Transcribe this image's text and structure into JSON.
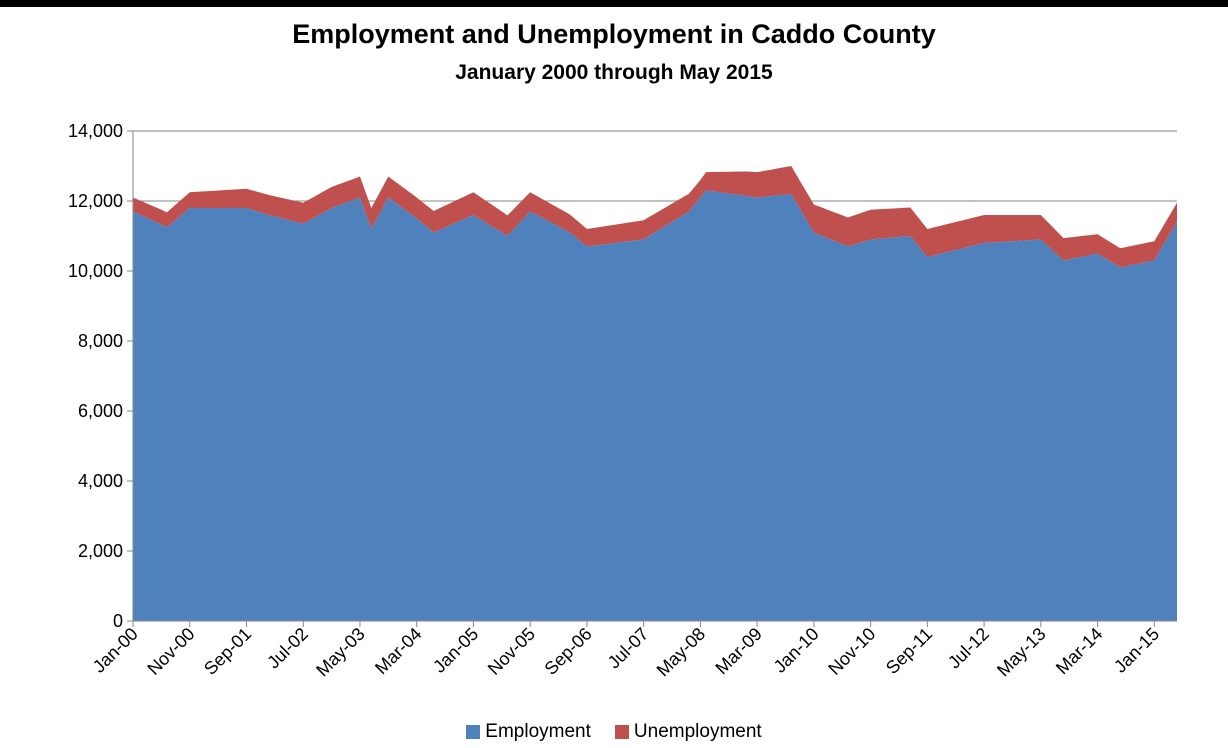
{
  "title": "Employment and Unemployment in Caddo County",
  "subtitle": "January 2000 through May 2015",
  "legend": {
    "employment": "Employment",
    "unemployment": "Unemployment"
  },
  "colors": {
    "employment": "#4f81bd",
    "unemployment": "#c0504d",
    "grid": "#868686",
    "axis": "#868686"
  },
  "chart_data": {
    "type": "area",
    "stacked": true,
    "title": "Employment and Unemployment in Caddo County",
    "subtitle": "January 2000 through May 2015",
    "x_start": "Jan-00",
    "x_end": "May-15",
    "x_tick_labels": [
      "Jan-00",
      "Nov-00",
      "Sep-01",
      "Jul-02",
      "May-03",
      "Mar-04",
      "Jan-05",
      "Nov-05",
      "Sep-06",
      "Jul-07",
      "May-08",
      "Mar-09",
      "Jan-10",
      "Nov-10",
      "Sep-11",
      "Jul-12",
      "May-13",
      "Mar-14",
      "Jan-15"
    ],
    "y_tick_labels": [
      "0",
      "2,000",
      "4,000",
      "6,000",
      "8,000",
      "10,000",
      "12,000",
      "14,000"
    ],
    "ylim": [
      0,
      14000
    ],
    "grid": true,
    "legend_position": "bottom",
    "series": [
      {
        "name": "Employment",
        "anchors": [
          [
            "Jan-00",
            11700
          ],
          [
            "Jul-00",
            11250
          ],
          [
            "Nov-00",
            11800
          ],
          [
            "Sep-01",
            11800
          ],
          [
            "Jan-02",
            11600
          ],
          [
            "Jul-02",
            11350
          ],
          [
            "Dec-02",
            11800
          ],
          [
            "May-03",
            12100
          ],
          [
            "Jul-03",
            11200
          ],
          [
            "Oct-03",
            12100
          ],
          [
            "Mar-04",
            11500
          ],
          [
            "Jun-04",
            11100
          ],
          [
            "Jan-05",
            11600
          ],
          [
            "Jul-05",
            11000
          ],
          [
            "Nov-05",
            11700
          ],
          [
            "Jun-06",
            11100
          ],
          [
            "Sep-06",
            10700
          ],
          [
            "Jul-07",
            10900
          ],
          [
            "Mar-08",
            11700
          ],
          [
            "Jun-08",
            12300
          ],
          [
            "Mar-09",
            12100
          ],
          [
            "Sep-09",
            12200
          ],
          [
            "Jan-10",
            11100
          ],
          [
            "Jul-10",
            10700
          ],
          [
            "Nov-10",
            10900
          ],
          [
            "Jun-11",
            11000
          ],
          [
            "Sep-11",
            10400
          ],
          [
            "Jul-12",
            10800
          ],
          [
            "May-13",
            10900
          ],
          [
            "Sep-13",
            10300
          ],
          [
            "Mar-14",
            10500
          ],
          [
            "Jul-14",
            10100
          ],
          [
            "Jan-15",
            10300
          ],
          [
            "May-15",
            11400
          ]
        ]
      },
      {
        "name": "Unemployment",
        "anchors": [
          [
            "Jan-00",
            400
          ],
          [
            "Nov-00",
            450
          ],
          [
            "Sep-01",
            550
          ],
          [
            "Jul-02",
            600
          ],
          [
            "May-03",
            600
          ],
          [
            "Mar-04",
            600
          ],
          [
            "Jan-05",
            650
          ],
          [
            "Nov-05",
            550
          ],
          [
            "Sep-06",
            500
          ],
          [
            "Jul-07",
            550
          ],
          [
            "May-08",
            500
          ],
          [
            "Jan-09",
            700
          ],
          [
            "Sep-09",
            800
          ],
          [
            "Jan-10",
            800
          ],
          [
            "Nov-10",
            850
          ],
          [
            "Sep-11",
            800
          ],
          [
            "Jul-12",
            800
          ],
          [
            "May-13",
            700
          ],
          [
            "Mar-14",
            550
          ],
          [
            "Jan-15",
            550
          ],
          [
            "May-15",
            550
          ]
        ]
      }
    ]
  }
}
